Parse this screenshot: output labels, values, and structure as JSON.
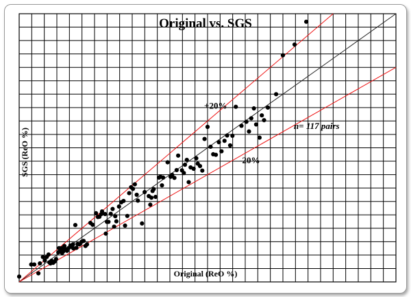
{
  "chart_data": {
    "type": "scatter",
    "title": "Original vs. SGS",
    "xlabel": "Original (ReO %)",
    "ylabel": "SGS  (ReO %)",
    "xlim": [
      0,
      100
    ],
    "ylim": [
      0,
      100
    ],
    "grid": true,
    "grid_divisions": {
      "x": 30,
      "y": 20
    },
    "lines": [
      {
        "label": "+20%",
        "slope": 1.2,
        "color": "#ee1111"
      },
      {
        "label": "",
        "slope": 1.0,
        "color": "#222222"
      },
      {
        "label": "-20%",
        "slope": 0.8,
        "color": "#ee1111"
      }
    ],
    "annotations": [
      {
        "text": "+20%",
        "x": 49.1,
        "y": 64.6
      },
      {
        "text": "-20%",
        "x": 58.4,
        "y": 44.3
      },
      {
        "text": "n= 117 pairs",
        "x": 72.9,
        "y": 57.0,
        "italic": true
      }
    ],
    "point_color": "#000000",
    "points": [
      [
        0,
        2
      ],
      [
        3.2,
        6.5
      ],
      [
        4.0,
        6.5
      ],
      [
        5.1,
        3.2
      ],
      [
        5.5,
        6.9
      ],
      [
        6.3,
        9.3
      ],
      [
        6.8,
        8.0
      ],
      [
        7.3,
        9.3
      ],
      [
        7.8,
        10.2
      ],
      [
        8.0,
        7.3
      ],
      [
        8.3,
        6.9
      ],
      [
        8.6,
        7.9
      ],
      [
        9.0,
        7.1
      ],
      [
        9.4,
        7.6
      ],
      [
        9.8,
        8.5
      ],
      [
        10.4,
        11.0
      ],
      [
        10.6,
        12.6
      ],
      [
        10.8,
        11.5
      ],
      [
        11.3,
        12.6
      ],
      [
        11.4,
        10.8
      ],
      [
        11.7,
        11.4
      ],
      [
        12.0,
        13.4
      ],
      [
        12.3,
        12.2
      ],
      [
        12.7,
        11.6
      ],
      [
        13.1,
        12.6
      ],
      [
        13.6,
        13.6
      ],
      [
        14.0,
        13.0
      ],
      [
        14.3,
        14.0
      ],
      [
        14.4,
        12.5
      ],
      [
        14.9,
        21.2
      ],
      [
        15.2,
        12.7
      ],
      [
        15.5,
        14.1
      ],
      [
        16.0,
        14.0
      ],
      [
        16.6,
        15.0
      ],
      [
        17.1,
        15.3
      ],
      [
        17.6,
        13.4
      ],
      [
        18.0,
        14.0
      ],
      [
        18.9,
        22.0
      ],
      [
        19.5,
        21.3
      ],
      [
        20.4,
        25.6
      ],
      [
        20.9,
        24.2
      ],
      [
        21.3,
        24.3
      ],
      [
        21.8,
        25.3
      ],
      [
        22.0,
        26.3
      ],
      [
        22.8,
        25.3
      ],
      [
        23.0,
        18.0
      ],
      [
        23.3,
        22.4
      ],
      [
        23.7,
        22.4
      ],
      [
        24.3,
        25.4
      ],
      [
        24.8,
        27.2
      ],
      [
        25.2,
        20.6
      ],
      [
        25.5,
        24.5
      ],
      [
        25.8,
        22.6
      ],
      [
        26.5,
        28.1
      ],
      [
        27.1,
        29.7
      ],
      [
        27.7,
        30.2
      ],
      [
        28.1,
        21.0
      ],
      [
        28.7,
        24.6
      ],
      [
        29.2,
        33.1
      ],
      [
        29.7,
        35.3
      ],
      [
        30.2,
        34.7
      ],
      [
        30.7,
        36.4
      ],
      [
        31.2,
        32.5
      ],
      [
        31.5,
        30.3
      ],
      [
        32.6,
        21.8
      ],
      [
        33.3,
        33.5
      ],
      [
        34.4,
        32.0
      ],
      [
        34.8,
        28.8
      ],
      [
        35.1,
        31.4
      ],
      [
        35.4,
        33.9
      ],
      [
        35.7,
        34.6
      ],
      [
        36.2,
        31.7
      ],
      [
        37.1,
        38.9
      ],
      [
        37.5,
        39.2
      ],
      [
        37.9,
        36.0
      ],
      [
        38.2,
        38.9
      ],
      [
        39.4,
        44.6
      ],
      [
        40.2,
        39.2
      ],
      [
        40.6,
        39.9
      ],
      [
        41.2,
        38.8
      ],
      [
        41.8,
        41.7
      ],
      [
        42.2,
        47.1
      ],
      [
        43.2,
        41.6
      ],
      [
        43.7,
        40.6
      ],
      [
        44.0,
        43.7
      ],
      [
        44.5,
        45.5
      ],
      [
        45.0,
        37.2
      ],
      [
        45.5,
        42.7
      ],
      [
        46.3,
        42.2
      ],
      [
        47.0,
        46.1
      ],
      [
        47.4,
        44.1
      ],
      [
        48.0,
        43.2
      ],
      [
        48.6,
        41.5
      ],
      [
        49.2,
        53.3
      ],
      [
        50.0,
        57.8
      ],
      [
        50.8,
        50.4
      ],
      [
        51.5,
        47.6
      ],
      [
        52.2,
        47.4
      ],
      [
        53.0,
        52.1
      ],
      [
        53.7,
        48.7
      ],
      [
        54.5,
        52.6
      ],
      [
        55.2,
        54.6
      ],
      [
        56.0,
        50.9
      ],
      [
        56.6,
        54.5
      ],
      [
        57.5,
        65.3
      ],
      [
        59.0,
        58.2
      ],
      [
        60.3,
        59.7
      ],
      [
        61.0,
        56.1
      ],
      [
        61.6,
        61.0
      ],
      [
        62.3,
        64.7
      ],
      [
        62.9,
        58.7
      ],
      [
        63.8,
        53.8
      ],
      [
        64.4,
        62.1
      ],
      [
        65.0,
        60.3
      ],
      [
        66.0,
        65.0
      ],
      [
        68.2,
        70.0
      ],
      [
        70.0,
        84.5
      ],
      [
        73.1,
        88.5
      ],
      [
        76.2,
        97.0
      ]
    ]
  }
}
